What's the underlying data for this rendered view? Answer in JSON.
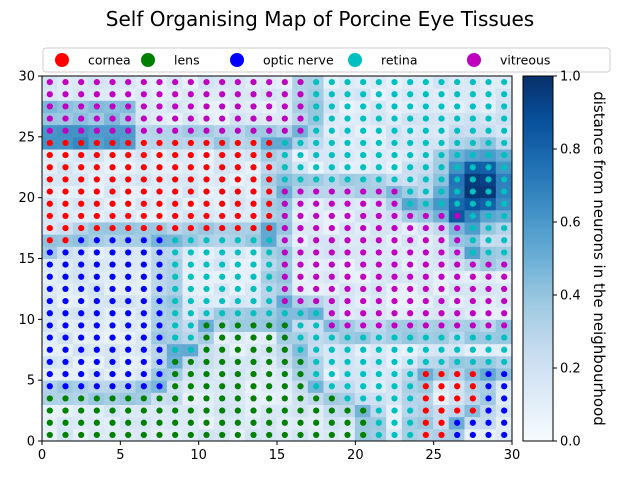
{
  "chart_data": {
    "type": "scatter",
    "title": "Self Organising Map of Porcine Eye Tissues",
    "xlim": [
      0,
      30
    ],
    "ylim": [
      0,
      30
    ],
    "xticks": [
      "0",
      "5",
      "10",
      "15",
      "20",
      "25",
      "30"
    ],
    "yticks": [
      "0",
      "5",
      "10",
      "15",
      "20",
      "25",
      "30"
    ],
    "grid_size": 30,
    "legend_placement": "top",
    "series": [
      {
        "name": "cornea",
        "color": "#ff0000"
      },
      {
        "name": "lens",
        "color": "#008000"
      },
      {
        "name": "optic nerve",
        "color": "#0000ff"
      },
      {
        "name": "retina",
        "color": "#00bfbf"
      },
      {
        "name": "vitreous",
        "color": "#bf00bf"
      }
    ],
    "region_map": [
      "VVVVVVVVVVVVVVVVVRRRRRRRRRRRRR",
      "VVVVVVVVVVVVVVVVVRRRRRRRRRRRRR",
      "VVVVVVVVVVVVVVVVVRRRRRRRRRRRRR",
      "VVVVVVVVVVVVVVVVVRRRRRRRRRRRRR",
      "VVVVVVVVVVVVVVVVVRRRRRRRRRRRRR",
      "CCCCCCCCCCCCCCCRRRRRRRRRRRRRRR",
      "CCCCCCCCCCCCCCCRRRRRRRRRRRRRRR",
      "CCCCCCCCCCCCCCCRRRRRRRRRRRRRRR",
      "CCCCCCCCCCCCCCCRRRRRRRRRRRRRRR",
      "CCCCCCCCCCCCCCCVVVVVVVVRRRRRRR",
      "CCCCCCCCCCCCCCCVVVVVVVVRRRRRRR",
      "CCCCCCCCCCCCCCCVVVVVVVVVVVVRRR",
      "CCCCCCCCCCCCCCCVVVVVVVVVVVVRRR",
      "CCOOOOOORRRRRRRVVVVVVVVVVVVRRR",
      "OOOOOOOORRRRRRRVVVVVVVVVVVVRRR",
      "OOOOOOOORRRRRRRVVVVVVVVVVVVVVV",
      "OOOOOOOORRRRRRRVVVVVVVVVVVVVVV",
      "OOOOOOOORRRRRRRVVVVVVVVVVVVVVV",
      "OOOOOOOORRRRRRRVVVVVVVVVVVVVVV",
      "OOOOOOOORRRRRRRRRRVVVVVVVVVVVV",
      "OOOOOOOORRLLLLLLRRVVVVVVVVVVVV",
      "OOOOOOOORRLLLLLLRRRRRRRRRRRRRR",
      "OOOOOOOORRLLLLLLRRRRRRRRRRRRRR",
      "OOOOOOOOLLLLLLLLLRRRRRRRRRRRRR",
      "OOOOOOOOLLLLLLLLLRRRRRRRCCCCOO",
      "OOOOOOOOLLLLLLLLLRRRRRRRCCCCOO",
      "LLLLLLLLLLLLLLLLLLLRRRRRCCCCOO",
      "LLLLLLLLLLLLLLLLLLLLLRRRCCCCOO",
      "LLLLLLLLLLLLLLLLLLLLLRRRCCOOOO",
      "LLLLLLLLLLLLLLLLLLLLLRRRCCOOOO"
    ],
    "colorbar": {
      "label": "distance from neurons in the neighbourhood",
      "range": [
        0,
        1
      ],
      "ticks": [
        "0.0",
        "0.2",
        "0.4",
        "0.6",
        "0.8",
        "1.0"
      ],
      "colormap": "Blues"
    }
  }
}
